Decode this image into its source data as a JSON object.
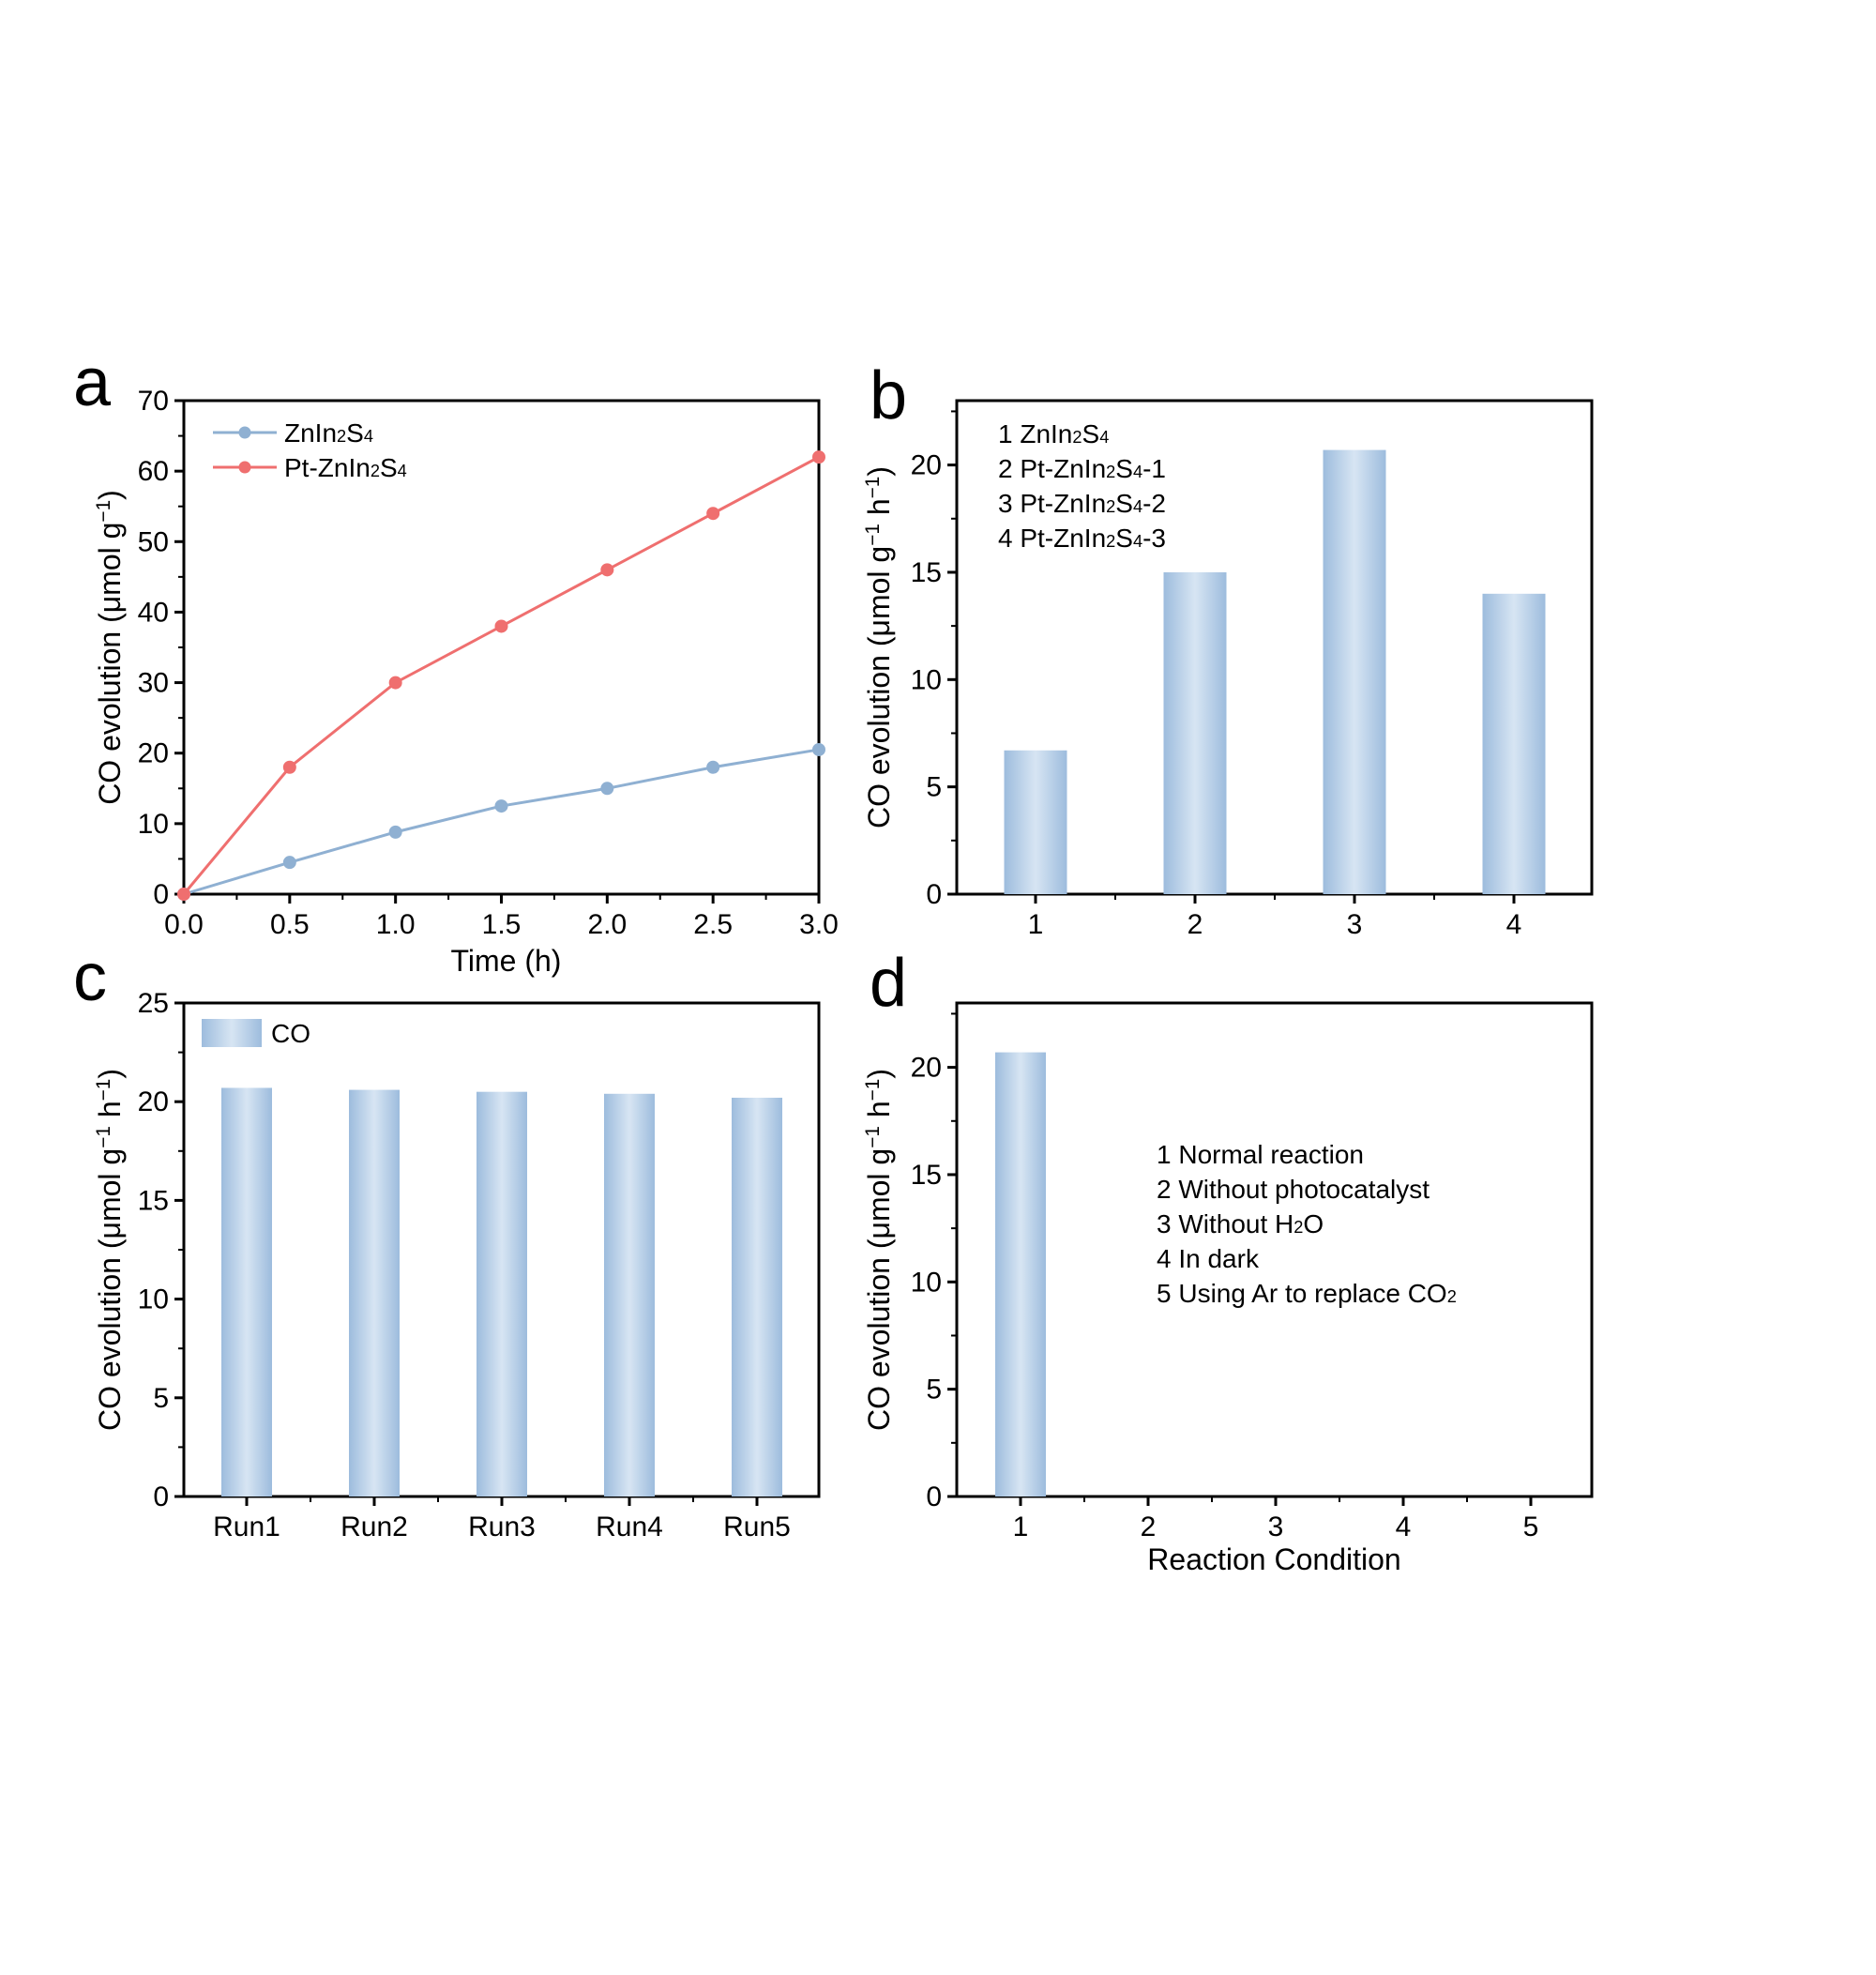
{
  "colors": {
    "zn_line": "#8fb0d2",
    "pt_line": "#ef6f6f",
    "bar_light": "#d7e5f3",
    "bar_dark": "#9dbcdd",
    "axis": "#000000"
  },
  "chart_data": [
    {
      "type": "line",
      "panel": "a",
      "xlabel": "Time (h)",
      "ylabel": "CO evolution (μmol g⁻¹)",
      "xlim": [
        0,
        3
      ],
      "ylim": [
        0,
        70
      ],
      "xticks": [
        "0.0",
        "0.5",
        "1.0",
        "1.5",
        "2.0",
        "2.5",
        "3.0"
      ],
      "yticks": [
        "0",
        "10",
        "20",
        "30",
        "40",
        "50",
        "60",
        "70"
      ],
      "x": [
        0,
        0.5,
        1.0,
        1.5,
        2.0,
        2.5,
        3.0
      ],
      "series": [
        {
          "name": "ZnIn₂S₄",
          "color": "#8fb0d2",
          "values": [
            0,
            4.5,
            8.8,
            12.5,
            15.0,
            18.0,
            20.5
          ]
        },
        {
          "name": "Pt-ZnIn₂S₄",
          "color": "#ef6f6f",
          "values": [
            0,
            18.0,
            30.0,
            38.0,
            46.0,
            54.0,
            62.0
          ]
        }
      ]
    },
    {
      "type": "bar",
      "panel": "b",
      "ylabel": "CO evolution (μmol g⁻¹ h⁻¹)",
      "ylim": [
        0,
        23
      ],
      "yticks": [
        "0",
        "5",
        "10",
        "15",
        "20"
      ],
      "categories": [
        "1",
        "2",
        "3",
        "4"
      ],
      "values": [
        6.7,
        15.0,
        20.7,
        14.0
      ],
      "legend": [
        "1 ZnIn₂S₄",
        "2 Pt-ZnIn₂S₄-1",
        "3 Pt-ZnIn₂S₄-2",
        "4 Pt-ZnIn₂S₄-3"
      ]
    },
    {
      "type": "bar",
      "panel": "c",
      "ylabel": "CO evolution (μmol g⁻¹ h⁻¹)",
      "ylim": [
        0,
        25
      ],
      "yticks": [
        "0",
        "5",
        "10",
        "15",
        "20",
        "25"
      ],
      "categories": [
        "Run1",
        "Run2",
        "Run3",
        "Run4",
        "Run5"
      ],
      "values": [
        20.7,
        20.6,
        20.5,
        20.4,
        20.2
      ],
      "legend": [
        "CO"
      ]
    },
    {
      "type": "bar",
      "panel": "d",
      "xlabel": "Reaction Condition",
      "ylabel": "CO evolution (μmol g⁻¹ h⁻¹)",
      "ylim": [
        0,
        23
      ],
      "yticks": [
        "0",
        "5",
        "10",
        "15",
        "20"
      ],
      "categories": [
        "1",
        "2",
        "3",
        "4",
        "5"
      ],
      "values": [
        20.7,
        0,
        0,
        0,
        0
      ],
      "legend": [
        "1  Normal reaction",
        "2  Without photocatalyst",
        "3  Without H₂O",
        "4  In dark",
        "5  Using Ar to replace CO₂"
      ]
    }
  ]
}
